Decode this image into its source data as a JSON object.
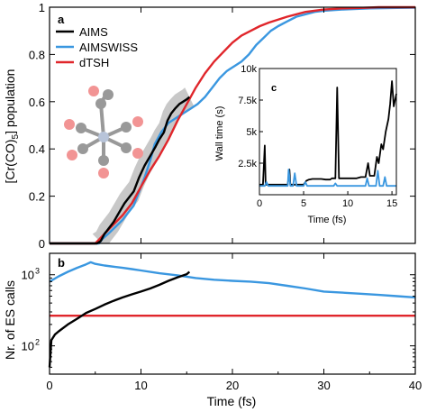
{
  "chart_data": [
    {
      "panel": "a",
      "type": "line",
      "ylabel_parts": [
        "[Cr(CO)",
        "5",
        "] population"
      ],
      "xlim": [
        0,
        40
      ],
      "ylim": [
        0,
        1
      ],
      "yticks": [
        0,
        0.2,
        0.4,
        0.6,
        0.8,
        1
      ],
      "ytick_labels": [
        "0",
        "0.2",
        "0.4",
        "0.6",
        "0.8",
        "1"
      ],
      "legend_placement": "top-left",
      "series": [
        {
          "name": "AIMS",
          "color": "#000000",
          "points": [
            [
              0,
              0
            ],
            [
              5.2,
              0
            ],
            [
              5.6,
              0.01
            ],
            [
              6.0,
              0.04
            ],
            [
              6.4,
              0.06
            ],
            [
              7.0,
              0.09
            ],
            [
              7.6,
              0.13
            ],
            [
              8.2,
              0.17
            ],
            [
              8.8,
              0.2
            ],
            [
              9.2,
              0.22
            ],
            [
              9.8,
              0.28
            ],
            [
              10.4,
              0.33
            ],
            [
              11.0,
              0.37
            ],
            [
              11.6,
              0.41
            ],
            [
              12.0,
              0.44
            ],
            [
              12.5,
              0.47
            ],
            [
              12.9,
              0.52
            ],
            [
              13.3,
              0.55
            ],
            [
              13.7,
              0.57
            ],
            [
              14.2,
              0.59
            ],
            [
              14.6,
              0.6
            ],
            [
              15.0,
              0.61
            ],
            [
              15.3,
              0.62
            ]
          ]
        },
        {
          "name": "AIMSWISS",
          "color": "#3a97e0",
          "points": [
            [
              0,
              0
            ],
            [
              5.4,
              0
            ],
            [
              5.8,
              0.02
            ],
            [
              6.4,
              0.04
            ],
            [
              7.2,
              0.07
            ],
            [
              8.0,
              0.1
            ],
            [
              8.6,
              0.13
            ],
            [
              9.2,
              0.16
            ],
            [
              9.8,
              0.22
            ],
            [
              10.4,
              0.28
            ],
            [
              11.0,
              0.35
            ],
            [
              11.5,
              0.42
            ],
            [
              12.2,
              0.47
            ],
            [
              13.0,
              0.51
            ],
            [
              13.8,
              0.53
            ],
            [
              14.6,
              0.55
            ],
            [
              15.4,
              0.57
            ],
            [
              16.2,
              0.59
            ],
            [
              17.0,
              0.62
            ],
            [
              17.8,
              0.66
            ],
            [
              18.6,
              0.7
            ],
            [
              19.4,
              0.73
            ],
            [
              20.2,
              0.75
            ],
            [
              21.0,
              0.77
            ],
            [
              21.8,
              0.8
            ],
            [
              22.6,
              0.84
            ],
            [
              23.4,
              0.87
            ],
            [
              24.2,
              0.9
            ],
            [
              25.0,
              0.92
            ],
            [
              26.0,
              0.94
            ],
            [
              27.0,
              0.96
            ],
            [
              28.0,
              0.97
            ],
            [
              29.0,
              0.98
            ],
            [
              30.0,
              0.985
            ],
            [
              32.0,
              0.99
            ],
            [
              35.0,
              0.995
            ],
            [
              38.0,
              0.997
            ],
            [
              40.0,
              0.998
            ]
          ]
        },
        {
          "name": "dTSH",
          "color": "#e0262b",
          "points": [
            [
              0,
              0
            ],
            [
              5.0,
              0
            ],
            [
              5.5,
              0.02
            ],
            [
              6.0,
              0.04
            ],
            [
              7.0,
              0.08
            ],
            [
              8.0,
              0.12
            ],
            [
              9.0,
              0.17
            ],
            [
              10.0,
              0.24
            ],
            [
              11.0,
              0.31
            ],
            [
              12.0,
              0.37
            ],
            [
              13.0,
              0.44
            ],
            [
              14.0,
              0.52
            ],
            [
              15.0,
              0.59
            ],
            [
              16.0,
              0.66
            ],
            [
              17.0,
              0.72
            ],
            [
              18.0,
              0.77
            ],
            [
              19.0,
              0.81
            ],
            [
              20.0,
              0.85
            ],
            [
              21.0,
              0.88
            ],
            [
              22.0,
              0.9
            ],
            [
              23.0,
              0.92
            ],
            [
              24.0,
              0.935
            ],
            [
              26.0,
              0.96
            ],
            [
              28.0,
              0.98
            ],
            [
              30.0,
              0.99
            ],
            [
              32.0,
              0.995
            ],
            [
              34.0,
              0.997
            ],
            [
              36.0,
              1.0
            ],
            [
              40.0,
              1.0
            ]
          ]
        }
      ]
    },
    {
      "panel": "c",
      "type": "line",
      "xlabel": "Time (fs)",
      "ylabel": "Wall time (s)",
      "xlim": [
        0,
        15.5
      ],
      "ylim": [
        0,
        10000
      ],
      "xticks": [
        0,
        5,
        10,
        15
      ],
      "xtick_labels": [
        "0",
        "5",
        "10",
        "15"
      ],
      "yticks": [
        2500,
        5000,
        7500,
        10000
      ],
      "ytick_labels": [
        "2.5k",
        "5k",
        "7.5k",
        "10k"
      ],
      "series": [
        {
          "name": "AIMS",
          "color": "#000000",
          "points": [
            [
              0,
              800
            ],
            [
              0.4,
              800
            ],
            [
              0.6,
              3900
            ],
            [
              0.7,
              800
            ],
            [
              1.0,
              800
            ],
            [
              3.2,
              800
            ],
            [
              3.4,
              2000
            ],
            [
              3.5,
              800
            ],
            [
              5.0,
              800
            ],
            [
              5.3,
              1100
            ],
            [
              5.6,
              1200
            ],
            [
              6.0,
              1250
            ],
            [
              7.0,
              1250
            ],
            [
              7.5,
              1200
            ],
            [
              8.0,
              1200
            ],
            [
              8.2,
              1300
            ],
            [
              8.6,
              1300
            ],
            [
              8.8,
              8500
            ],
            [
              9.0,
              1300
            ],
            [
              11.0,
              1300
            ],
            [
              11.5,
              1400
            ],
            [
              12.0,
              1400
            ],
            [
              12.3,
              2500
            ],
            [
              12.5,
              1500
            ],
            [
              13.0,
              1500
            ],
            [
              13.3,
              3000
            ],
            [
              13.5,
              2500
            ],
            [
              13.8,
              4000
            ],
            [
              14.0,
              3600
            ],
            [
              14.3,
              5000
            ],
            [
              14.6,
              6000
            ],
            [
              14.8,
              7200
            ],
            [
              15.0,
              9000
            ],
            [
              15.2,
              7000
            ],
            [
              15.5,
              8000
            ]
          ]
        },
        {
          "name": "AIMSWISS",
          "color": "#3a97e0",
          "points": [
            [
              0,
              700
            ],
            [
              0.6,
              700
            ],
            [
              0.8,
              1000
            ],
            [
              1.0,
              700
            ],
            [
              2.0,
              700
            ],
            [
              3.2,
              700
            ],
            [
              3.3,
              2000
            ],
            [
              3.5,
              700
            ],
            [
              3.8,
              700
            ],
            [
              4.0,
              1700
            ],
            [
              4.2,
              700
            ],
            [
              5.0,
              700
            ],
            [
              5.2,
              1000
            ],
            [
              5.4,
              700
            ],
            [
              8.0,
              700
            ],
            [
              8.4,
              700
            ],
            [
              8.6,
              900
            ],
            [
              8.8,
              700
            ],
            [
              9.5,
              700
            ],
            [
              12.0,
              700
            ],
            [
              12.2,
              1300
            ],
            [
              12.4,
              700
            ],
            [
              13.2,
              700
            ],
            [
              13.4,
              1900
            ],
            [
              13.6,
              700
            ],
            [
              14.0,
              700
            ],
            [
              14.2,
              1400
            ],
            [
              14.4,
              700
            ],
            [
              15.0,
              700
            ],
            [
              15.5,
              700
            ]
          ]
        }
      ]
    },
    {
      "panel": "b",
      "type": "line",
      "xlabel": "Time (fs)",
      "ylabel": "Nr. of ES calls",
      "log_y": true,
      "xlim": [
        0,
        40
      ],
      "ylim": [
        40,
        2000
      ],
      "xticks": [
        0,
        10,
        20,
        30,
        40
      ],
      "xtick_labels": [
        "0",
        "10",
        "20",
        "30",
        "40"
      ],
      "yticks": [
        100,
        1000
      ],
      "ytick_base": "10",
      "ytick_exponents": [
        "2",
        "3"
      ],
      "series": [
        {
          "name": "AIMS",
          "color": "#000000",
          "points": [
            [
              0,
              50
            ],
            [
              0.2,
              120
            ],
            [
              0.6,
              145
            ],
            [
              1.0,
              160
            ],
            [
              2.0,
              200
            ],
            [
              3.0,
              240
            ],
            [
              4.0,
              290
            ],
            [
              5.0,
              330
            ],
            [
              6.0,
              380
            ],
            [
              7.0,
              430
            ],
            [
              8.0,
              480
            ],
            [
              9.0,
              530
            ],
            [
              10.0,
              580
            ],
            [
              11.0,
              640
            ],
            [
              12.0,
              720
            ],
            [
              13.0,
              820
            ],
            [
              14.0,
              920
            ],
            [
              15.0,
              1020
            ],
            [
              15.3,
              1100
            ]
          ]
        },
        {
          "name": "AIMSWISS",
          "color": "#3a97e0",
          "points": [
            [
              0,
              800
            ],
            [
              1.0,
              950
            ],
            [
              2.0,
              1100
            ],
            [
              3.0,
              1250
            ],
            [
              4.0,
              1400
            ],
            [
              4.5,
              1500
            ],
            [
              5.0,
              1420
            ],
            [
              6.0,
              1350
            ],
            [
              7.0,
              1300
            ],
            [
              8.0,
              1250
            ],
            [
              9.0,
              1200
            ],
            [
              10.0,
              1150
            ],
            [
              12.0,
              1050
            ],
            [
              14.0,
              980
            ],
            [
              16.0,
              900
            ],
            [
              18.0,
              850
            ],
            [
              20.0,
              820
            ],
            [
              22.0,
              800
            ],
            [
              24.0,
              760
            ],
            [
              26.0,
              700
            ],
            [
              28.0,
              640
            ],
            [
              30.0,
              580
            ],
            [
              32.0,
              560
            ],
            [
              34.0,
              540
            ],
            [
              36.0,
              520
            ],
            [
              38.0,
              500
            ],
            [
              40.0,
              480
            ]
          ]
        },
        {
          "name": "dTSH",
          "color": "#e0262b",
          "points": [
            [
              0,
              265
            ],
            [
              40,
              265
            ]
          ]
        }
      ]
    }
  ]
}
